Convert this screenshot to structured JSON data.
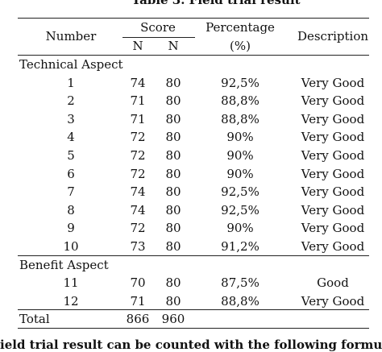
{
  "table": {
    "title": "Table 3. Field trial result",
    "headers": {
      "number": "Number",
      "score": "Score",
      "n1": "N",
      "n2": "N",
      "percentage": "Percentage",
      "percent_unit": "(%)",
      "description": "Description"
    },
    "sections": [
      {
        "label": "Technical Aspect",
        "rows": [
          [
            1,
            74,
            80,
            "92,5%",
            "Very Good"
          ],
          [
            2,
            71,
            80,
            "88,8%",
            "Very Good"
          ],
          [
            3,
            71,
            80,
            "88,8%",
            "Very Good"
          ],
          [
            4,
            72,
            80,
            "90%",
            "Very Good"
          ],
          [
            5,
            72,
            80,
            "90%",
            "Very Good"
          ],
          [
            6,
            72,
            80,
            "90%",
            "Very Good"
          ],
          [
            7,
            74,
            80,
            "92,5%",
            "Very Good"
          ],
          [
            8,
            74,
            80,
            "92,5%",
            "Very Good"
          ],
          [
            9,
            72,
            80,
            "90%",
            "Very Good"
          ],
          [
            10,
            73,
            80,
            "91,2%",
            "Very Good"
          ]
        ]
      },
      {
        "label": "Benefit Aspect",
        "rows": [
          [
            11,
            70,
            80,
            "87,5%",
            "Good"
          ],
          [
            12,
            71,
            80,
            "88,8%",
            "Very Good"
          ]
        ]
      }
    ],
    "total": [
      "Total",
      866,
      960
    ]
  },
  "footer_text": "ield trial result can be counted with the following formula"
}
